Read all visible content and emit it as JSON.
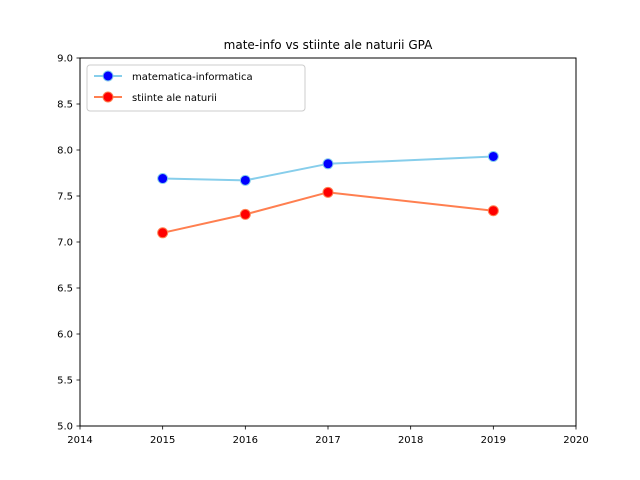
{
  "chart_data": {
    "type": "line",
    "title": "mate-info vs stiinte ale naturii GPA",
    "xlabel": "",
    "ylabel": "",
    "xlim": [
      2014,
      2020
    ],
    "ylim": [
      5.0,
      9.0
    ],
    "x_ticks": [
      "2014",
      "2015",
      "2016",
      "2017",
      "2018",
      "2019",
      "2020"
    ],
    "y_ticks": [
      "5.0",
      "5.5",
      "6.0",
      "6.5",
      "7.0",
      "7.5",
      "8.0",
      "8.5",
      "9.0"
    ],
    "grid": false,
    "legend_position": "top-left",
    "series": [
      {
        "name": "matematica-informatica",
        "line_color": "#87ceeb",
        "marker_color": "#0000ff",
        "x": [
          2015,
          2016,
          2017,
          2019
        ],
        "values": [
          7.69,
          7.67,
          7.85,
          7.93
        ]
      },
      {
        "name": "stiinte ale naturii",
        "line_color": "#ff7f50",
        "marker_color": "#ff0000",
        "x": [
          2015,
          2016,
          2017,
          2019
        ],
        "values": [
          7.1,
          7.3,
          7.54,
          7.34
        ]
      }
    ]
  }
}
